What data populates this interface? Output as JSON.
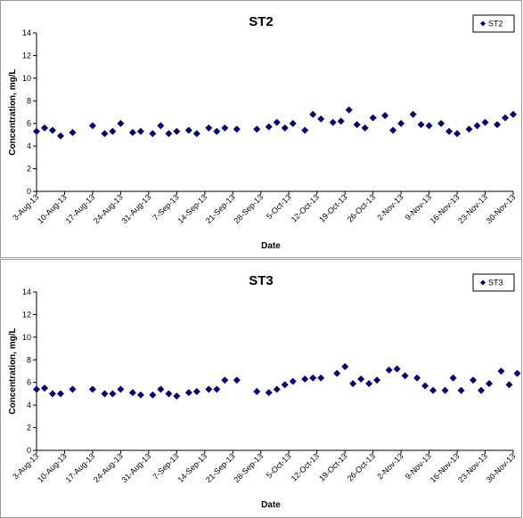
{
  "charts": [
    {
      "id": "st2",
      "chart_data": {
        "type": "scatter",
        "title": "ST2",
        "xlabel": "Date",
        "ylabel": "Concentration, mg/L",
        "ylim": [
          0,
          14
        ],
        "yticks": [
          "0",
          "2",
          "4",
          "6",
          "8",
          "10",
          "12",
          "14"
        ],
        "xlim": [
          "2013-08-03",
          "2013-11-30"
        ],
        "xticks": [
          "3-Aug-13",
          "10-Aug-13",
          "17-Aug-13",
          "24-Aug-13",
          "31-Aug-13",
          "7-Sep-13",
          "14-Sep-13",
          "21-Sep-13",
          "28-Sep-13",
          "5-Oct-13",
          "12-Oct-13",
          "19-Oct-13",
          "26-Oct-13",
          "2-Nov-13",
          "9-Nov-13",
          "16-Nov-13",
          "23-Nov-13",
          "30-Nov-13"
        ],
        "grid": false,
        "legend": "top-right",
        "series": [
          {
            "name": "ST2",
            "color": "#000080",
            "marker": "diamond",
            "points": [
              [
                "2013-08-03",
                5.3
              ],
              [
                "2013-08-05",
                5.6
              ],
              [
                "2013-08-07",
                5.4
              ],
              [
                "2013-08-09",
                4.9
              ],
              [
                "2013-08-12",
                5.2
              ],
              [
                "2013-08-17",
                5.8
              ],
              [
                "2013-08-20",
                5.1
              ],
              [
                "2013-08-22",
                5.3
              ],
              [
                "2013-08-24",
                6.0
              ],
              [
                "2013-08-27",
                5.2
              ],
              [
                "2013-08-29",
                5.3
              ],
              [
                "2013-09-01",
                5.1
              ],
              [
                "2013-09-03",
                5.8
              ],
              [
                "2013-09-05",
                5.1
              ],
              [
                "2013-09-07",
                5.3
              ],
              [
                "2013-09-10",
                5.4
              ],
              [
                "2013-09-12",
                5.1
              ],
              [
                "2013-09-15",
                5.6
              ],
              [
                "2013-09-17",
                5.3
              ],
              [
                "2013-09-19",
                5.6
              ],
              [
                "2013-09-22",
                5.5
              ],
              [
                "2013-09-27",
                5.5
              ],
              [
                "2013-09-30",
                5.7
              ],
              [
                "2013-10-02",
                6.1
              ],
              [
                "2013-10-04",
                5.6
              ],
              [
                "2013-10-06",
                6.0
              ],
              [
                "2013-10-09",
                5.4
              ],
              [
                "2013-10-11",
                6.8
              ],
              [
                "2013-10-13",
                6.4
              ],
              [
                "2013-10-16",
                6.1
              ],
              [
                "2013-10-18",
                6.2
              ],
              [
                "2013-10-20",
                7.2
              ],
              [
                "2013-10-22",
                5.9
              ],
              [
                "2013-10-24",
                5.6
              ],
              [
                "2013-10-26",
                6.5
              ],
              [
                "2013-10-29",
                6.7
              ],
              [
                "2013-10-31",
                5.4
              ],
              [
                "2013-11-02",
                6.0
              ],
              [
                "2013-11-05",
                6.8
              ],
              [
                "2013-11-07",
                5.9
              ],
              [
                "2013-11-09",
                5.8
              ],
              [
                "2013-11-12",
                6.0
              ],
              [
                "2013-11-14",
                5.3
              ],
              [
                "2013-11-16",
                5.1
              ],
              [
                "2013-11-19",
                5.5
              ],
              [
                "2013-11-21",
                5.8
              ],
              [
                "2013-11-23",
                6.1
              ],
              [
                "2013-11-26",
                5.9
              ],
              [
                "2013-11-28",
                6.5
              ],
              [
                "2013-11-30",
                6.8
              ]
            ]
          }
        ]
      }
    },
    {
      "id": "st3",
      "chart_data": {
        "type": "scatter",
        "title": "ST3",
        "xlabel": "Date",
        "ylabel": "Concentration, mg/L",
        "ylim": [
          0,
          14
        ],
        "yticks": [
          "0",
          "2",
          "4",
          "6",
          "8",
          "10",
          "12",
          "14"
        ],
        "xlim": [
          "2013-08-03",
          "2013-11-30"
        ],
        "xticks": [
          "3-Aug-13",
          "10-Aug-13",
          "17-Aug-13",
          "24-Aug-13",
          "31-Aug-13",
          "7-Sep-13",
          "14-Sep-13",
          "21-Sep-13",
          "28-Sep-13",
          "5-Oct-13",
          "12-Oct-13",
          "19-Oct-13",
          "26-Oct-13",
          "2-Nov-13",
          "9-Nov-13",
          "16-Nov-13",
          "23-Nov-13",
          "30-Nov-13"
        ],
        "grid": false,
        "legend": "top-right",
        "series": [
          {
            "name": "ST3",
            "color": "#000080",
            "marker": "diamond",
            "points": [
              [
                "2013-08-03",
                5.4
              ],
              [
                "2013-08-05",
                5.5
              ],
              [
                "2013-08-07",
                5.0
              ],
              [
                "2013-08-09",
                5.0
              ],
              [
                "2013-08-12",
                5.4
              ],
              [
                "2013-08-17",
                5.4
              ],
              [
                "2013-08-20",
                5.0
              ],
              [
                "2013-08-22",
                5.0
              ],
              [
                "2013-08-24",
                5.4
              ],
              [
                "2013-08-27",
                5.1
              ],
              [
                "2013-08-29",
                4.9
              ],
              [
                "2013-09-01",
                4.9
              ],
              [
                "2013-09-03",
                5.4
              ],
              [
                "2013-09-05",
                5.0
              ],
              [
                "2013-09-07",
                4.8
              ],
              [
                "2013-09-10",
                5.1
              ],
              [
                "2013-09-12",
                5.2
              ],
              [
                "2013-09-15",
                5.4
              ],
              [
                "2013-09-17",
                5.4
              ],
              [
                "2013-09-19",
                6.2
              ],
              [
                "2013-09-22",
                6.2
              ],
              [
                "2013-09-27",
                5.2
              ],
              [
                "2013-09-30",
                5.1
              ],
              [
                "2013-10-02",
                5.4
              ],
              [
                "2013-10-04",
                5.8
              ],
              [
                "2013-10-06",
                6.1
              ],
              [
                "2013-10-09",
                6.3
              ],
              [
                "2013-10-11",
                6.4
              ],
              [
                "2013-10-13",
                6.4
              ],
              [
                "2013-10-17",
                6.8
              ],
              [
                "2013-10-19",
                7.4
              ],
              [
                "2013-10-21",
                5.9
              ],
              [
                "2013-10-23",
                6.3
              ],
              [
                "2013-10-25",
                5.9
              ],
              [
                "2013-10-27",
                6.2
              ],
              [
                "2013-10-30",
                7.1
              ],
              [
                "2013-11-01",
                7.2
              ],
              [
                "2013-11-03",
                6.6
              ],
              [
                "2013-11-06",
                6.4
              ],
              [
                "2013-11-08",
                5.7
              ],
              [
                "2013-11-10",
                5.3
              ],
              [
                "2013-11-13",
                5.3
              ],
              [
                "2013-11-15",
                6.4
              ],
              [
                "2013-11-17",
                5.3
              ],
              [
                "2013-11-20",
                6.2
              ],
              [
                "2013-11-22",
                5.3
              ],
              [
                "2013-11-24",
                5.9
              ],
              [
                "2013-11-27",
                7.0
              ],
              [
                "2013-11-29",
                5.8
              ],
              [
                "2013-12-01",
                6.8
              ]
            ]
          }
        ]
      }
    }
  ]
}
